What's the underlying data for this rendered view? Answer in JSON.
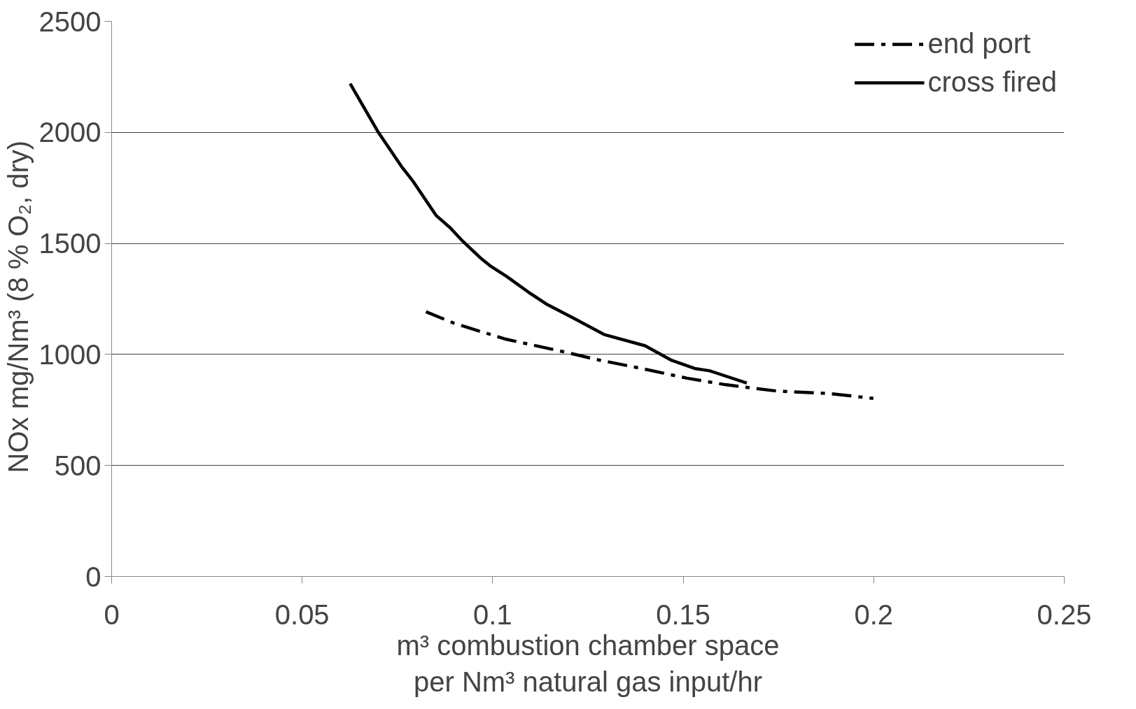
{
  "chart_data": {
    "type": "line",
    "xlabel": "m³ combustion chamber space\nper Nm³ natural gas input/hr",
    "ylabel": "NOx mg/Nm³   (8 % O₂, dry)",
    "xlim": [
      0,
      0.25
    ],
    "xticks": [
      0,
      0.05,
      0.1,
      0.15,
      0.2,
      0.25
    ],
    "ylim": [
      0,
      2500
    ],
    "yticks": [
      0,
      500,
      1000,
      1500,
      2000,
      2500
    ],
    "grid": "y",
    "legend": "top right",
    "marker": "none",
    "series": [
      {
        "name": "end port",
        "color": "#000000",
        "line_style": "dashed",
        "x": [
          0.0825,
          0.0898,
          0.0967,
          0.1036,
          0.1095,
          0.1194,
          0.1273,
          0.139,
          0.151,
          0.161,
          0.1746,
          0.1884,
          0.1999
        ],
        "values": [
          1192,
          1141,
          1104,
          1068,
          1046,
          1009,
          977,
          937,
          893,
          864,
          835,
          824,
          802
        ]
      },
      {
        "name": "cross fired",
        "color": "#000000",
        "line_style": "solid",
        "x": [
          0.0626,
          0.07,
          0.076,
          0.079,
          0.0852,
          0.0888,
          0.0918,
          0.0967,
          0.0996,
          0.1036,
          0.1095,
          0.1144,
          0.1213,
          0.1292,
          0.14,
          0.147,
          0.153,
          0.157,
          0.1667
        ],
        "values": [
          2219,
          2000,
          1848,
          1782,
          1625,
          1571,
          1516,
          1436,
          1396,
          1352,
          1279,
          1224,
          1163,
          1090,
          1039,
          973,
          937,
          926,
          871
        ]
      }
    ]
  }
}
